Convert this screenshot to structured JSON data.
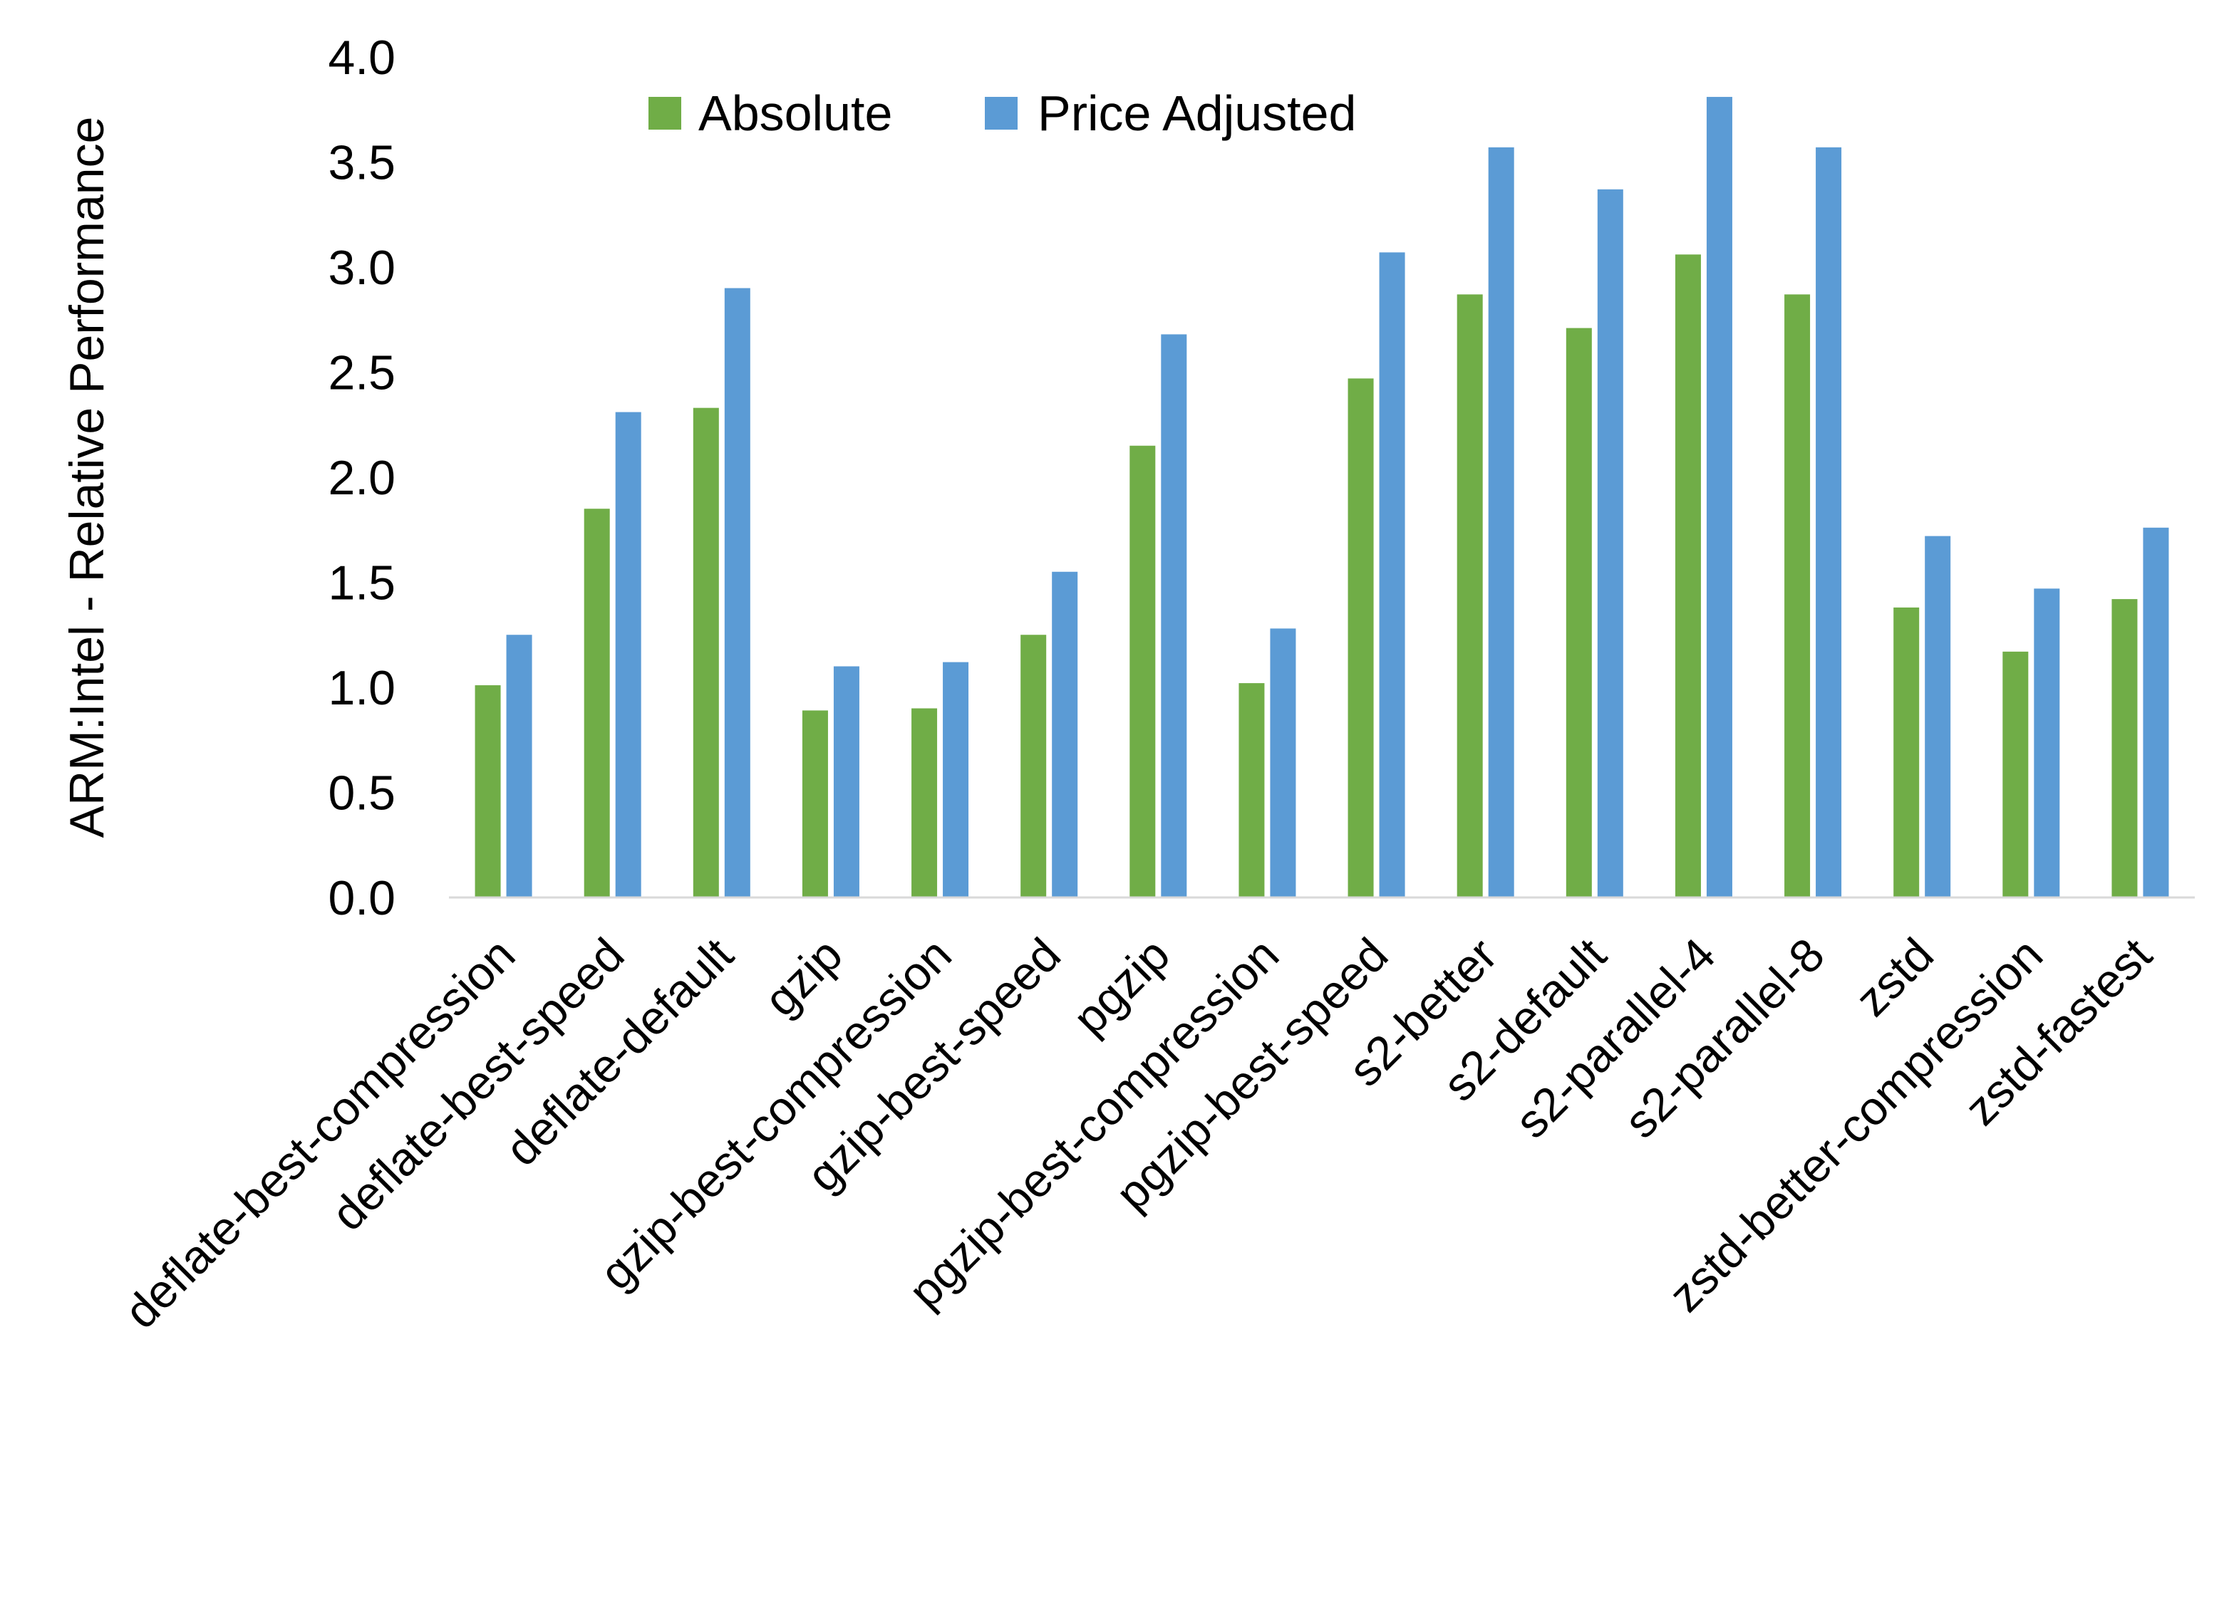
{
  "chart_data": {
    "type": "bar",
    "title": "",
    "xlabel": "",
    "ylabel": "ARM:Intel - Relative Performance",
    "ylim": [
      0,
      4.0
    ],
    "yticks": [
      "0.0",
      "0.5",
      "1.0",
      "1.5",
      "2.0",
      "2.5",
      "3.0",
      "3.5",
      "4.0"
    ],
    "grid": false,
    "legend_position": "top",
    "categories": [
      "deflate-best-compression",
      "deflate-best-speed",
      "deflate-default",
      "gzip",
      "gzip-best-compression",
      "gzip-best-speed",
      "pgzip",
      "pgzip-best-compression",
      "pgzip-best-speed",
      "s2-better",
      "s2-default",
      "s2-parallel-4",
      "s2-parallel-8",
      "zstd",
      "zstd-better-compression",
      "zstd-fastest"
    ],
    "series": [
      {
        "name": "Absolute",
        "color": "#70AD47",
        "values": [
          1.01,
          1.85,
          2.33,
          0.89,
          0.9,
          1.25,
          2.15,
          1.02,
          2.47,
          2.87,
          2.71,
          3.06,
          2.87,
          1.38,
          1.17,
          1.42
        ]
      },
      {
        "name": "Price Adjusted",
        "color": "#5B9BD5",
        "values": [
          1.25,
          2.31,
          2.9,
          1.1,
          1.12,
          1.55,
          2.68,
          1.28,
          3.07,
          3.57,
          3.37,
          3.81,
          3.57,
          1.72,
          1.47,
          1.76
        ]
      }
    ]
  }
}
